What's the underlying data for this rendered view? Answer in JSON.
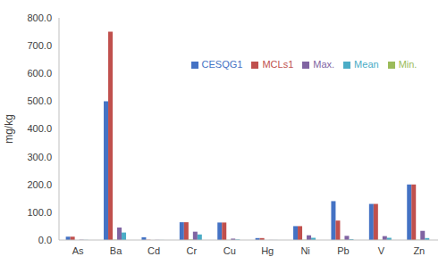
{
  "chart_data": {
    "type": "bar",
    "y_label": "mg/kg",
    "categories": [
      "As",
      "Ba",
      "Cd",
      "Cr",
      "Cu",
      "Hg",
      "Ni",
      "Pb",
      "V",
      "Zn"
    ],
    "series": [
      {
        "name": "CESQG1",
        "color": "#4472c4",
        "values": [
          12,
          500,
          10,
          64,
          63,
          7,
          50,
          140,
          130,
          200
        ]
      },
      {
        "name": "MCLs1",
        "color": "#c0504d",
        "values": [
          12,
          750,
          1,
          64,
          63,
          7,
          50,
          70,
          130,
          200
        ]
      },
      {
        "name": "Min.",
        "color": "#9bbb59",
        "values": [
          0.1,
          1,
          0.1,
          2,
          0.5,
          0.1,
          1,
          1,
          1,
          1
        ]
      },
      {
        "name": "Max.",
        "color": "#8064a2",
        "values": [
          1,
          45,
          0.5,
          30,
          5,
          0.3,
          17,
          15,
          14,
          33
        ]
      },
      {
        "name": "Mean",
        "color": "#4bacc6",
        "values": [
          0.5,
          27,
          0.3,
          20,
          2,
          0.2,
          8,
          3,
          8,
          7
        ]
      }
    ],
    "ylim": [
      0,
      800
    ],
    "yticks": [
      {
        "value": 0,
        "label": "0.0"
      },
      {
        "value": 100,
        "label": "100.0"
      },
      {
        "value": 200,
        "label": "200.0"
      },
      {
        "value": 300,
        "label": "300.0"
      },
      {
        "value": 400,
        "label": "400.0"
      },
      {
        "value": 500,
        "label": "500.0"
      },
      {
        "value": 600,
        "label": "600.0"
      },
      {
        "value": 700,
        "label": "700.0"
      },
      {
        "value": 800,
        "label": "800.0"
      }
    ],
    "grid": false,
    "legend": "top"
  }
}
